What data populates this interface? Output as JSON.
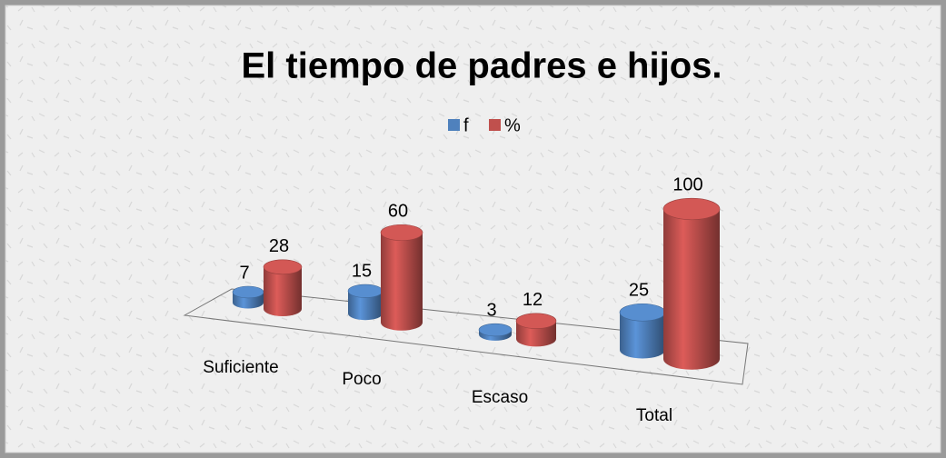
{
  "chart_data": {
    "type": "bar3d",
    "title": "El tiempo de padres e hijos.",
    "categories": [
      "Suficiente",
      "Poco",
      "Escaso",
      "Total"
    ],
    "series": [
      {
        "name": "f",
        "color": "#4f81bd",
        "values": [
          7,
          15,
          3,
          25
        ]
      },
      {
        "name": "%",
        "color": "#c0504d",
        "values": [
          28,
          60,
          12,
          100
        ]
      }
    ],
    "legend": "top"
  }
}
